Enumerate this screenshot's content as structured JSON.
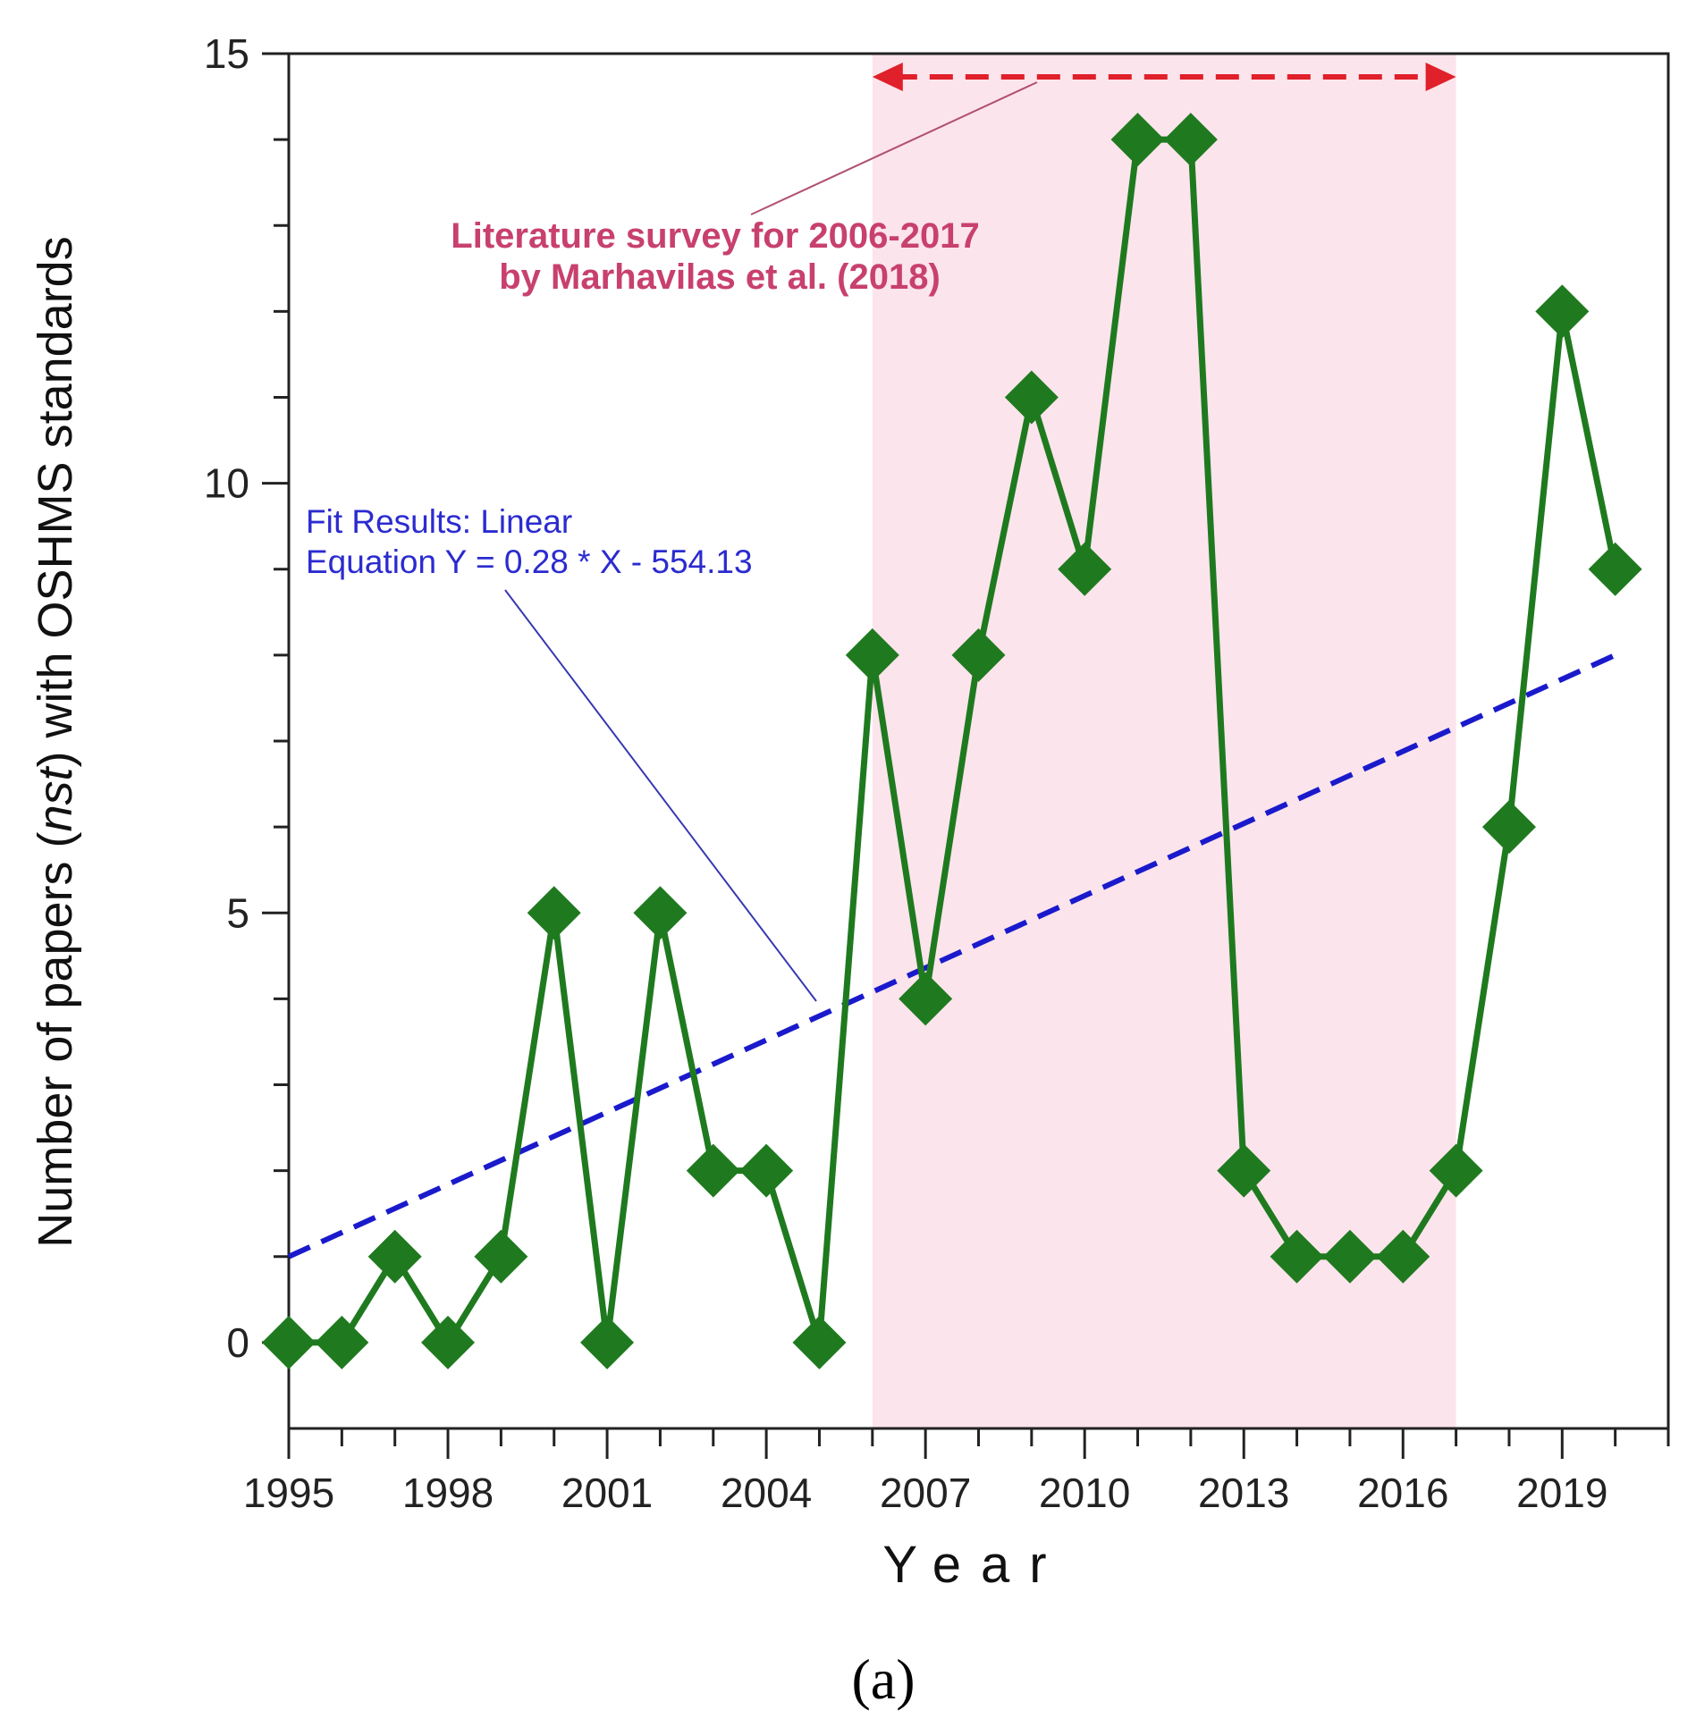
{
  "chart_data": {
    "type": "line",
    "xlabel": "Year",
    "ylabel": "Number of papers (nst) with OSHMS standards",
    "ylabel_parts": {
      "before": "Number of papers (",
      "italic": "nst",
      "after": ") with OSHMS standards"
    },
    "xlim": [
      1995,
      2021
    ],
    "ylim": [
      -1,
      15
    ],
    "x_ticks": [
      1995,
      1998,
      2001,
      2004,
      2007,
      2010,
      2013,
      2016,
      2019
    ],
    "y_ticks": [
      0,
      5,
      10,
      15
    ],
    "x_tick_labels": [
      "1995",
      "1998",
      "2001",
      "2004",
      "2007",
      "2010",
      "2013",
      "2016",
      "2019"
    ],
    "y_tick_labels": [
      "0",
      "5",
      "10",
      "15"
    ],
    "series": [
      {
        "name": "Number of papers",
        "marker": "diamond",
        "color": "#1f7a1f",
        "x": [
          1995,
          1996,
          1997,
          1998,
          1999,
          2000,
          2001,
          2002,
          2003,
          2004,
          2005,
          2006,
          2007,
          2008,
          2009,
          2010,
          2011,
          2012,
          2013,
          2014,
          2015,
          2016,
          2017,
          2018,
          2019,
          2020
        ],
        "y": [
          0,
          0,
          1,
          0,
          1,
          5,
          0,
          5,
          2,
          2,
          0,
          8,
          4,
          8,
          11,
          9,
          14,
          14,
          2,
          1,
          1,
          1,
          2,
          6,
          12,
          9
        ]
      }
    ],
    "fit": {
      "label_line1": "Fit Results: Linear",
      "label_line2": "Equation Y = 0.28 * X - 554.13",
      "slope": 0.28,
      "intercept": -554.13,
      "x_range": [
        1995,
        2020
      ],
      "y_start": 1,
      "y_end": 8,
      "color": "#1a1acc"
    },
    "highlight_region": {
      "x_start": 2006,
      "x_end": 2017,
      "color": "#fce4ec",
      "label_line1": "Literature survey for 2006-2017",
      "label_line2": "by Marhavilas et al. (2018)",
      "arrow_color": "#e0202a",
      "label_color": "#c8406e"
    },
    "caption": "(a)"
  }
}
